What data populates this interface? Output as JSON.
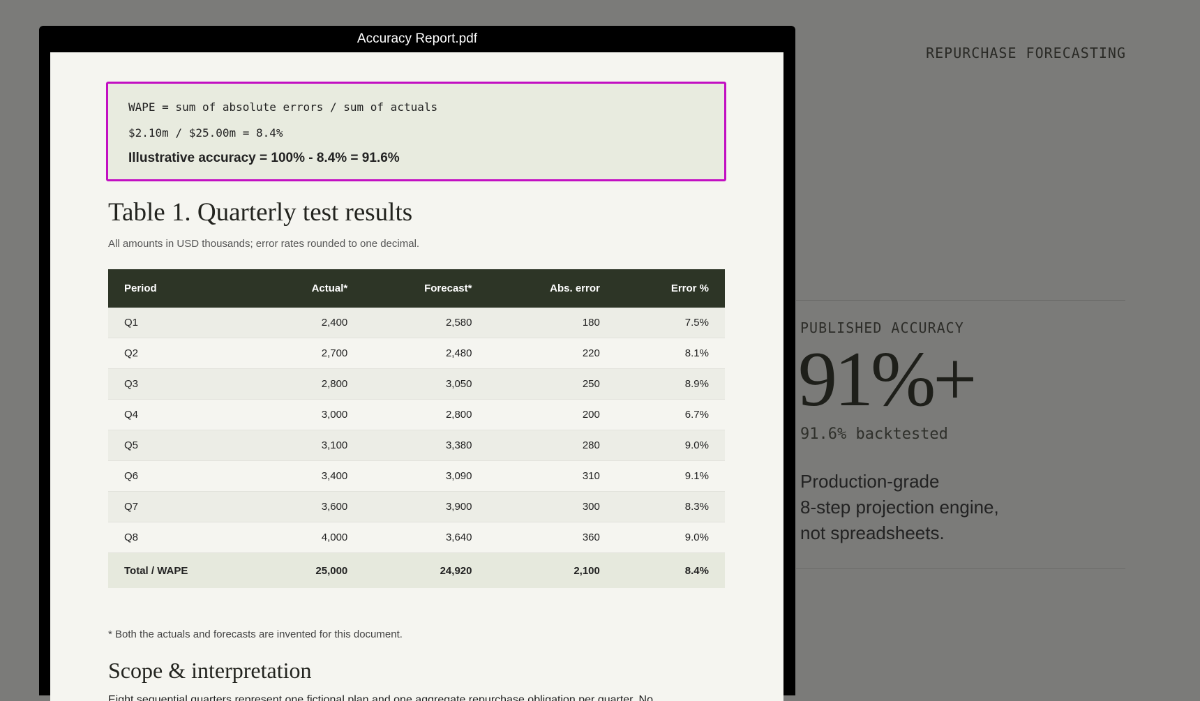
{
  "side": {
    "kicker": "REPURCHASE FORECASTING",
    "label": "PUBLISHED ACCURACY",
    "headline": "91%+",
    "backtest": "91.6% backtested",
    "pitch": [
      "Production-grade",
      "8-step projection engine,",
      "not spreadsheets."
    ]
  },
  "modal": {
    "title": "Accuracy Report.pdf"
  },
  "formula": [
    "WAPE = sum of absolute errors / sum of actuals",
    "$2.10m / $25.00m = 8.4%",
    "Illustrative accuracy = 100% - 8.4% = 91.6%"
  ],
  "table": {
    "title": "Table 1. Quarterly test results",
    "subtitle": "All amounts in USD thousands; error rates rounded to one decimal.",
    "columns": [
      "Period",
      "Actual*",
      "Forecast*",
      "Abs. error",
      "Error %"
    ],
    "rows": [
      [
        "Q1",
        "2,400",
        "2,580",
        "180",
        "7.5%"
      ],
      [
        "Q2",
        "2,700",
        "2,480",
        "220",
        "8.1%"
      ],
      [
        "Q3",
        "2,800",
        "3,050",
        "250",
        "8.9%"
      ],
      [
        "Q4",
        "3,000",
        "2,800",
        "200",
        "6.7%"
      ],
      [
        "Q5",
        "3,100",
        "3,380",
        "280",
        "9.0%"
      ],
      [
        "Q6",
        "3,400",
        "3,090",
        "310",
        "9.1%"
      ],
      [
        "Q7",
        "3,600",
        "3,900",
        "300",
        "8.3%"
      ],
      [
        "Q8",
        "4,000",
        "3,640",
        "360",
        "9.0%"
      ]
    ],
    "total": [
      "Total / WAPE",
      "25,000",
      "24,920",
      "2,100",
      "8.4%"
    ],
    "footnote": "* Both the actuals and forecasts are invented for this document."
  },
  "section": {
    "title": "Scope & interpretation",
    "text": "Eight sequential quarters represent one fictional plan and one aggregate repurchase obligation per quarter. No"
  }
}
